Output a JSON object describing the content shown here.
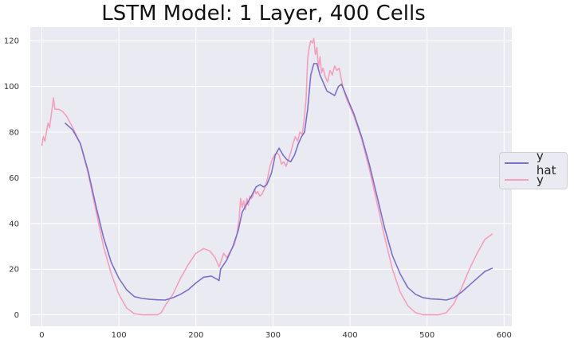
{
  "chart_data": {
    "type": "line",
    "title": "LSTM Model: 1 Layer, 400 Cells",
    "xlabel": "",
    "ylabel": "",
    "xlim": [
      -15,
      610
    ],
    "ylim": [
      -5,
      126
    ],
    "xticks": [
      0,
      100,
      200,
      300,
      400,
      500,
      600
    ],
    "yticks": [
      0,
      20,
      40,
      60,
      80,
      100,
      120
    ],
    "grid": true,
    "legend_position": "right",
    "series": [
      {
        "name": "y hat",
        "color": "#7b70c8",
        "points": [
          [
            30,
            84
          ],
          [
            40,
            81
          ],
          [
            50,
            75
          ],
          [
            60,
            63
          ],
          [
            70,
            48
          ],
          [
            80,
            34
          ],
          [
            90,
            23
          ],
          [
            100,
            16
          ],
          [
            110,
            11
          ],
          [
            120,
            8
          ],
          [
            130,
            7.2
          ],
          [
            140,
            6.8
          ],
          [
            150,
            6.6
          ],
          [
            160,
            6.5
          ],
          [
            170,
            7.5
          ],
          [
            180,
            9
          ],
          [
            190,
            11
          ],
          [
            200,
            14
          ],
          [
            210,
            16.5
          ],
          [
            220,
            17
          ],
          [
            228,
            15.5
          ],
          [
            230,
            15
          ],
          [
            232,
            20
          ],
          [
            240,
            24
          ],
          [
            248,
            30
          ],
          [
            255,
            37
          ],
          [
            260,
            45
          ],
          [
            265,
            48
          ],
          [
            272,
            52
          ],
          [
            278,
            56
          ],
          [
            283,
            57
          ],
          [
            288,
            56
          ],
          [
            292,
            57
          ],
          [
            298,
            62
          ],
          [
            303,
            70
          ],
          [
            308,
            73
          ],
          [
            313,
            70
          ],
          [
            318,
            68
          ],
          [
            323,
            67
          ],
          [
            328,
            70
          ],
          [
            333,
            75
          ],
          [
            337,
            78
          ],
          [
            341,
            80
          ],
          [
            345,
            90
          ],
          [
            349,
            105
          ],
          [
            353,
            110
          ],
          [
            357,
            110
          ],
          [
            361,
            105
          ],
          [
            365,
            102
          ],
          [
            370,
            98
          ],
          [
            375,
            97
          ],
          [
            380,
            96
          ],
          [
            385,
            100
          ],
          [
            389,
            101
          ],
          [
            395,
            96
          ],
          [
            405,
            88
          ],
          [
            415,
            78
          ],
          [
            425,
            66
          ],
          [
            435,
            52
          ],
          [
            445,
            38
          ],
          [
            455,
            26
          ],
          [
            465,
            18
          ],
          [
            475,
            12
          ],
          [
            485,
            9
          ],
          [
            495,
            7.5
          ],
          [
            505,
            7
          ],
          [
            515,
            6.8
          ],
          [
            525,
            6.5
          ],
          [
            535,
            7.5
          ],
          [
            545,
            10
          ],
          [
            555,
            13
          ],
          [
            565,
            16
          ],
          [
            575,
            19
          ],
          [
            585,
            20.5
          ]
        ]
      },
      {
        "name": "y",
        "color": "#f4a0bc",
        "points": [
          [
            0,
            74
          ],
          [
            2,
            78
          ],
          [
            4,
            76
          ],
          [
            6,
            80
          ],
          [
            8,
            84
          ],
          [
            10,
            82
          ],
          [
            12,
            87
          ],
          [
            14,
            92
          ],
          [
            15,
            95
          ],
          [
            17,
            90
          ],
          [
            22,
            90
          ],
          [
            27,
            89
          ],
          [
            32,
            87
          ],
          [
            40,
            82
          ],
          [
            50,
            75
          ],
          [
            60,
            62
          ],
          [
            70,
            46
          ],
          [
            80,
            30
          ],
          [
            90,
            18
          ],
          [
            100,
            9
          ],
          [
            110,
            3
          ],
          [
            120,
            0.5
          ],
          [
            130,
            0
          ],
          [
            140,
            0
          ],
          [
            150,
            0
          ],
          [
            155,
            1
          ],
          [
            160,
            4
          ],
          [
            170,
            9
          ],
          [
            180,
            16
          ],
          [
            190,
            22
          ],
          [
            200,
            27
          ],
          [
            210,
            29
          ],
          [
            218,
            28
          ],
          [
            225,
            25
          ],
          [
            230,
            21
          ],
          [
            233,
            24
          ],
          [
            236,
            27
          ],
          [
            240,
            25
          ],
          [
            245,
            28
          ],
          [
            250,
            31
          ],
          [
            253,
            35
          ],
          [
            256,
            42
          ],
          [
            258,
            51
          ],
          [
            260,
            47
          ],
          [
            262,
            50
          ],
          [
            264,
            46
          ],
          [
            266,
            51
          ],
          [
            268,
            48
          ],
          [
            270,
            52
          ],
          [
            272,
            51
          ],
          [
            274,
            52
          ],
          [
            276,
            55
          ],
          [
            278,
            53
          ],
          [
            280,
            54
          ],
          [
            283,
            52
          ],
          [
            286,
            53
          ],
          [
            290,
            56
          ],
          [
            293,
            60
          ],
          [
            296,
            65
          ],
          [
            299,
            68
          ],
          [
            302,
            70
          ],
          [
            305,
            71
          ],
          [
            308,
            70
          ],
          [
            311,
            66
          ],
          [
            314,
            67
          ],
          [
            317,
            65
          ],
          [
            320,
            68
          ],
          [
            323,
            71
          ],
          [
            326,
            75
          ],
          [
            329,
            78
          ],
          [
            332,
            76
          ],
          [
            335,
            80
          ],
          [
            338,
            79
          ],
          [
            341,
            87
          ],
          [
            343,
            95
          ],
          [
            345,
            112
          ],
          [
            347,
            117
          ],
          [
            349,
            120
          ],
          [
            351,
            119
          ],
          [
            353,
            121
          ],
          [
            355,
            114
          ],
          [
            357,
            117
          ],
          [
            359,
            108
          ],
          [
            361,
            113
          ],
          [
            363,
            106
          ],
          [
            365,
            108
          ],
          [
            368,
            104
          ],
          [
            371,
            102
          ],
          [
            374,
            107
          ],
          [
            377,
            105
          ],
          [
            380,
            109
          ],
          [
            383,
            107
          ],
          [
            386,
            108
          ],
          [
            390,
            101
          ],
          [
            395,
            95
          ],
          [
            405,
            87
          ],
          [
            415,
            77
          ],
          [
            425,
            64
          ],
          [
            435,
            49
          ],
          [
            445,
            34
          ],
          [
            455,
            20
          ],
          [
            465,
            10
          ],
          [
            475,
            4
          ],
          [
            485,
            1
          ],
          [
            495,
            0
          ],
          [
            505,
            0
          ],
          [
            515,
            0
          ],
          [
            525,
            1
          ],
          [
            535,
            5
          ],
          [
            545,
            12
          ],
          [
            555,
            20
          ],
          [
            565,
            27
          ],
          [
            575,
            33
          ],
          [
            585,
            35.5
          ]
        ]
      }
    ]
  }
}
